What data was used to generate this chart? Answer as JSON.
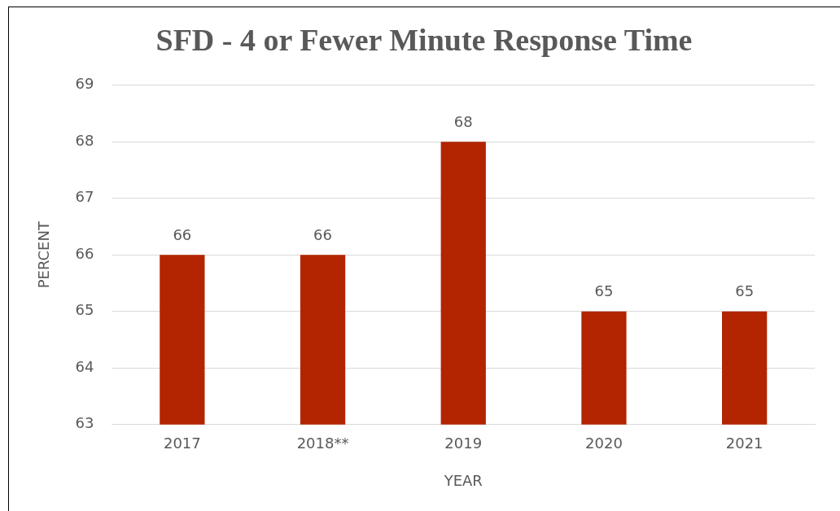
{
  "chart_data": {
    "type": "bar",
    "title": "SFD - 4 or Fewer Minute Response Time",
    "xlabel": "YEAR",
    "ylabel": "PERCENT",
    "categories": [
      "2017",
      "2018**",
      "2019",
      "2020",
      "2021"
    ],
    "values": [
      66,
      66,
      68,
      65,
      65
    ],
    "color": "#b22500",
    "ylim": [
      63,
      69
    ],
    "yticks": [
      63,
      64,
      65,
      66,
      67,
      68,
      69
    ],
    "grid": "y",
    "data_labels": true
  }
}
